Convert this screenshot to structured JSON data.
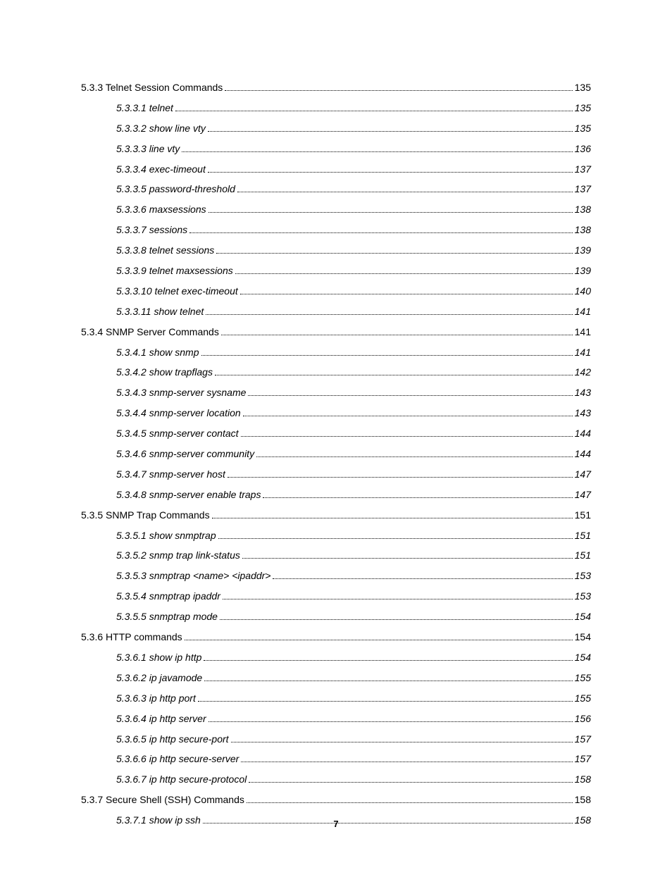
{
  "page_number": "7",
  "entries": [
    {
      "level": 1,
      "label": "5.3.3 Telnet Session Commands",
      "page": "135"
    },
    {
      "level": 2,
      "label": "5.3.3.1 telnet",
      "page": "135"
    },
    {
      "level": 2,
      "label": "5.3.3.2 show line vty",
      "page": "135"
    },
    {
      "level": 2,
      "label": "5.3.3.3 line vty",
      "page": "136"
    },
    {
      "level": 2,
      "label": "5.3.3.4 exec-timeout",
      "page": "137"
    },
    {
      "level": 2,
      "label": "5.3.3.5 password-threshold",
      "page": "137"
    },
    {
      "level": 2,
      "label": "5.3.3.6 maxsessions",
      "page": "138"
    },
    {
      "level": 2,
      "label": "5.3.3.7 sessions",
      "page": "138"
    },
    {
      "level": 2,
      "label": "5.3.3.8 telnet sessions",
      "page": "139"
    },
    {
      "level": 2,
      "label": "5.3.3.9 telnet maxsessions",
      "page": "139"
    },
    {
      "level": 2,
      "label": "5.3.3.10 telnet exec-timeout",
      "page": "140"
    },
    {
      "level": 2,
      "label": "5.3.3.11 show telnet",
      "page": "141"
    },
    {
      "level": 1,
      "label": "5.3.4 SNMP Server Commands",
      "page": "141"
    },
    {
      "level": 2,
      "label": "5.3.4.1 show snmp",
      "page": "141"
    },
    {
      "level": 2,
      "label": "5.3.4.2 show trapflags",
      "page": "142"
    },
    {
      "level": 2,
      "label": "5.3.4.3 snmp-server sysname",
      "page": "143"
    },
    {
      "level": 2,
      "label": "5.3.4.4 snmp-server location",
      "page": "143"
    },
    {
      "level": 2,
      "label": "5.3.4.5 snmp-server contact",
      "page": "144"
    },
    {
      "level": 2,
      "label": "5.3.4.6 snmp-server community",
      "page": "144"
    },
    {
      "level": 2,
      "label": "5.3.4.7 snmp-server host",
      "page": "147"
    },
    {
      "level": 2,
      "label": "5.3.4.8 snmp-server enable traps",
      "page": "147"
    },
    {
      "level": 1,
      "label": "5.3.5 SNMP Trap Commands",
      "page": "151"
    },
    {
      "level": 2,
      "label": "5.3.5.1 show snmptrap",
      "page": "151"
    },
    {
      "level": 2,
      "label": "5.3.5.2 snmp trap link-status",
      "page": "151"
    },
    {
      "level": 2,
      "label": "5.3.5.3 snmptrap <name> <ipaddr>",
      "page": "153"
    },
    {
      "level": 2,
      "label": "5.3.5.4 snmptrap ipaddr",
      "page": "153"
    },
    {
      "level": 2,
      "label": "5.3.5.5 snmptrap mode",
      "page": "154"
    },
    {
      "level": 1,
      "label": "5.3.6 HTTP commands",
      "page": "154"
    },
    {
      "level": 2,
      "label": "5.3.6.1 show ip http",
      "page": "154"
    },
    {
      "level": 2,
      "label": "5.3.6.2 ip javamode",
      "page": "155"
    },
    {
      "level": 2,
      "label": "5.3.6.3 ip http port",
      "page": "155"
    },
    {
      "level": 2,
      "label": "5.3.6.4 ip http server",
      "page": "156"
    },
    {
      "level": 2,
      "label": "5.3.6.5 ip http secure-port",
      "page": "157"
    },
    {
      "level": 2,
      "label": "5.3.6.6 ip http secure-server",
      "page": "157"
    },
    {
      "level": 2,
      "label": "5.3.6.7 ip http secure-protocol",
      "page": "158"
    },
    {
      "level": 1,
      "label": "5.3.7 Secure Shell (SSH) Commands",
      "page": "158"
    },
    {
      "level": 2,
      "label": "5.3.7.1 show ip ssh",
      "page": "158"
    }
  ]
}
